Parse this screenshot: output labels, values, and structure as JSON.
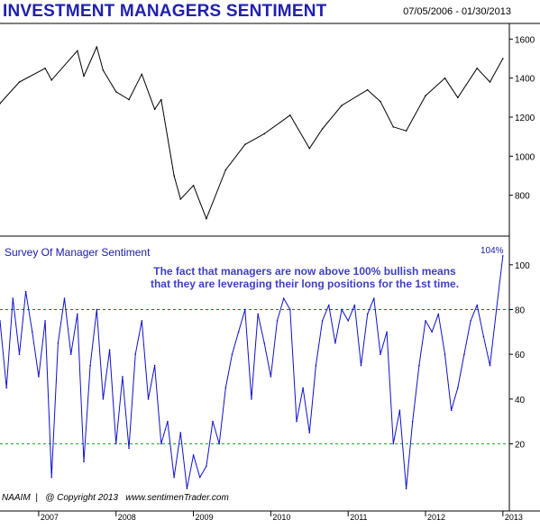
{
  "title": "INVESTMENT MANAGERS SENTIMENT",
  "date_range": "07/05/2006 - 01/30/2013",
  "lower_panel_label": "Survey  Of  Manager  Sentiment",
  "annotation_line1": "The fact that managers are now above 100% bullish means",
  "annotation_line2": "that they are leveraging their long positions for the 1st time.",
  "last_value_label": "104%",
  "footer": {
    "source": "NAAIM",
    "separator": "|",
    "copyright": "@ Copyright 2013",
    "website": "www.sentimenTrader.com"
  },
  "colors": {
    "title": "#2020b0",
    "sentiment_line": "#1010cc",
    "index_line": "#000000",
    "upper_ref_line": "#cc2222",
    "lower_ref_line": "#22aa22"
  },
  "chart_data": [
    {
      "type": "line",
      "title": "INVESTMENT MANAGERS SENTIMENT",
      "ylim": [
        600,
        1680
      ],
      "yticks": [
        800,
        1000,
        1200,
        1400,
        1600
      ],
      "grid": false,
      "series": [
        {
          "points": [
            [
              "2006-07",
              1270
            ],
            [
              "2006-10",
              1380
            ],
            [
              "2007-02",
              1450
            ],
            [
              "2007-03",
              1390
            ],
            [
              "2007-07",
              1540
            ],
            [
              "2007-08",
              1410
            ],
            [
              "2007-10",
              1560
            ],
            [
              "2007-11",
              1440
            ],
            [
              "2008-01",
              1330
            ],
            [
              "2008-03",
              1290
            ],
            [
              "2008-05",
              1420
            ],
            [
              "2008-07",
              1240
            ],
            [
              "2008-08",
              1290
            ],
            [
              "2008-10",
              900
            ],
            [
              "2008-11",
              780
            ],
            [
              "2009-01",
              850
            ],
            [
              "2009-03",
              680
            ],
            [
              "2009-06",
              930
            ],
            [
              "2009-09",
              1060
            ],
            [
              "2009-12",
              1115
            ],
            [
              "2010-04",
              1210
            ],
            [
              "2010-07",
              1040
            ],
            [
              "2010-09",
              1140
            ],
            [
              "2010-12",
              1260
            ],
            [
              "2011-04",
              1340
            ],
            [
              "2011-06",
              1280
            ],
            [
              "2011-08",
              1150
            ],
            [
              "2011-10",
              1130
            ],
            [
              "2012-01",
              1310
            ],
            [
              "2012-04",
              1400
            ],
            [
              "2012-06",
              1300
            ],
            [
              "2012-09",
              1450
            ],
            [
              "2012-11",
              1380
            ],
            [
              "2013-01",
              1500
            ]
          ]
        }
      ],
      "x_tick_labels": [
        "2007",
        "2008",
        "2009",
        "2010",
        "2011",
        "2012",
        "2013"
      ]
    },
    {
      "type": "line",
      "title": "Survey  Of  Manager  Sentiment",
      "ylim": [
        -10,
        112
      ],
      "yticks": [
        20,
        40,
        60,
        80,
        100
      ],
      "reference_lines": [
        {
          "value": 80,
          "style": "dashed",
          "color": "#cc2222"
        },
        {
          "value": 20,
          "style": "dashed",
          "color": "#22aa22"
        }
      ],
      "last_value": 104,
      "series": [
        {
          "points": [
            [
              "2006-07",
              75
            ],
            [
              "2006-08",
              45
            ],
            [
              "2006-09",
              85
            ],
            [
              "2006-10",
              60
            ],
            [
              "2006-11",
              88
            ],
            [
              "2006-12",
              70
            ],
            [
              "2007-01",
              50
            ],
            [
              "2007-02",
              75
            ],
            [
              "2007-03",
              5
            ],
            [
              "2007-04",
              65
            ],
            [
              "2007-05",
              85
            ],
            [
              "2007-06",
              60
            ],
            [
              "2007-07",
              78
            ],
            [
              "2007-08",
              12
            ],
            [
              "2007-09",
              55
            ],
            [
              "2007-10",
              80
            ],
            [
              "2007-11",
              40
            ],
            [
              "2007-12",
              62
            ],
            [
              "2008-01",
              20
            ],
            [
              "2008-02",
              50
            ],
            [
              "2008-03",
              18
            ],
            [
              "2008-04",
              60
            ],
            [
              "2008-05",
              75
            ],
            [
              "2008-06",
              40
            ],
            [
              "2008-07",
              55
            ],
            [
              "2008-08",
              20
            ],
            [
              "2008-09",
              30
            ],
            [
              "2008-10",
              5
            ],
            [
              "2008-11",
              25
            ],
            [
              "2008-12",
              0
            ],
            [
              "2009-01",
              15
            ],
            [
              "2009-02",
              5
            ],
            [
              "2009-03",
              10
            ],
            [
              "2009-04",
              30
            ],
            [
              "2009-05",
              20
            ],
            [
              "2009-06",
              45
            ],
            [
              "2009-07",
              60
            ],
            [
              "2009-08",
              70
            ],
            [
              "2009-09",
              80
            ],
            [
              "2009-10",
              40
            ],
            [
              "2009-11",
              78
            ],
            [
              "2009-12",
              65
            ],
            [
              "2010-01",
              50
            ],
            [
              "2010-02",
              75
            ],
            [
              "2010-03",
              85
            ],
            [
              "2010-04",
              80
            ],
            [
              "2010-05",
              30
            ],
            [
              "2010-06",
              45
            ],
            [
              "2010-07",
              25
            ],
            [
              "2010-08",
              55
            ],
            [
              "2010-09",
              75
            ],
            [
              "2010-10",
              82
            ],
            [
              "2010-11",
              65
            ],
            [
              "2010-12",
              80
            ],
            [
              "2011-01",
              75
            ],
            [
              "2011-02",
              82
            ],
            [
              "2011-03",
              55
            ],
            [
              "2011-04",
              78
            ],
            [
              "2011-05",
              85
            ],
            [
              "2011-06",
              60
            ],
            [
              "2011-07",
              70
            ],
            [
              "2011-08",
              20
            ],
            [
              "2011-09",
              35
            ],
            [
              "2011-10",
              0
            ],
            [
              "2011-11",
              30
            ],
            [
              "2011-12",
              55
            ],
            [
              "2012-01",
              75
            ],
            [
              "2012-02",
              70
            ],
            [
              "2012-03",
              78
            ],
            [
              "2012-04",
              60
            ],
            [
              "2012-05",
              35
            ],
            [
              "2012-06",
              45
            ],
            [
              "2012-07",
              60
            ],
            [
              "2012-08",
              75
            ],
            [
              "2012-09",
              82
            ],
            [
              "2012-10",
              68
            ],
            [
              "2012-11",
              55
            ],
            [
              "2012-12",
              80
            ],
            [
              "2013-01",
              104
            ]
          ]
        }
      ],
      "x_tick_labels": [
        "2007",
        "2008",
        "2009",
        "2010",
        "2011",
        "2012",
        "2013"
      ]
    }
  ]
}
